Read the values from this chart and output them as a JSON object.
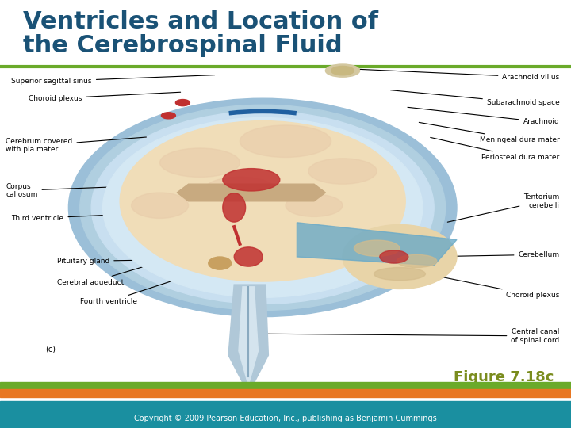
{
  "title_line1": "Ventricles and Location of",
  "title_line2": "the Cerebrospinal Fluid",
  "title_color": "#1a5276",
  "title_fontsize": 22,
  "title_bold": true,
  "green_line_color": "#6aaa2a",
  "green_line_y": 0.845,
  "green_line_thickness": 3,
  "figure_label": "Figure 7.18c",
  "figure_label_color": "#7a8c1e",
  "figure_label_fontsize": 13,
  "stripe_green": "#6aaa2a",
  "stripe_orange": "#e87722",
  "stripe_teal1": "#1a8fa0",
  "stripe_teal2": "#1a8fa0",
  "footer_blue": "#1a8fa0",
  "footer_text": "Copyright © 2009 Pearson Education, Inc., publishing as Benjamin Cummings",
  "footer_text_color": "#ffffff",
  "footer_text_fontsize": 7,
  "background_color": "#ffffff"
}
